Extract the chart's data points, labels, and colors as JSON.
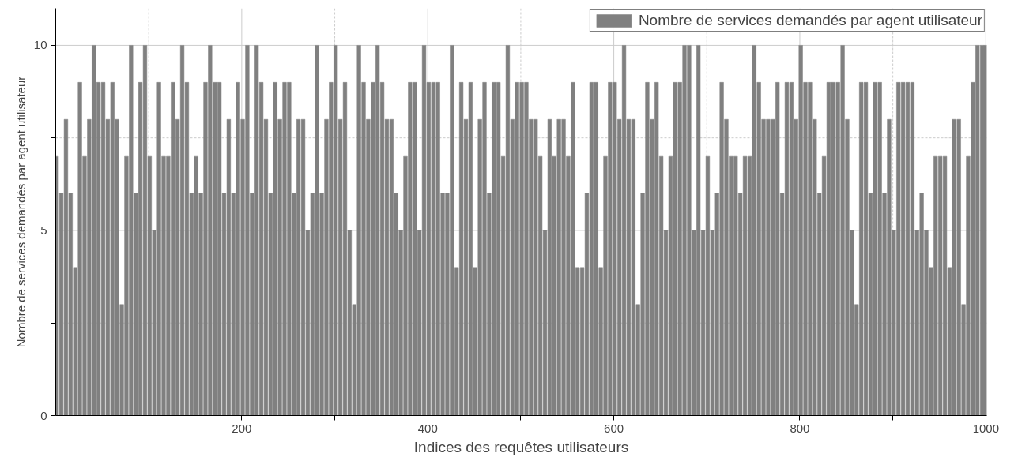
{
  "chart_data": {
    "type": "bar",
    "xlabel": "Indices des requêtes utilisateurs",
    "ylabel": "Nombre de services demandés par agent utilisateur",
    "x": [
      1,
      6,
      11,
      16,
      21,
      26,
      31,
      36,
      41,
      46,
      51,
      56,
      61,
      66,
      71,
      76,
      81,
      86,
      91,
      96,
      101,
      106,
      111,
      116,
      121,
      126,
      131,
      136,
      141,
      146,
      151,
      156,
      161,
      166,
      171,
      176,
      181,
      186,
      191,
      196,
      201,
      206,
      211,
      216,
      221,
      226,
      231,
      236,
      241,
      246,
      251,
      256,
      261,
      266,
      271,
      276,
      281,
      286,
      291,
      296,
      301,
      306,
      311,
      316,
      321,
      326,
      331,
      336,
      341,
      346,
      351,
      356,
      361,
      366,
      371,
      376,
      381,
      386,
      391,
      396,
      401,
      406,
      411,
      416,
      421,
      426,
      431,
      436,
      441,
      446,
      451,
      456,
      461,
      466,
      471,
      476,
      481,
      486,
      491,
      496,
      501,
      506,
      511,
      516,
      521,
      526,
      531,
      536,
      541,
      546,
      551,
      556,
      561,
      566,
      571,
      576,
      581,
      586,
      591,
      596,
      601,
      606,
      611,
      616,
      621,
      626,
      631,
      636,
      641,
      646,
      651,
      656,
      661,
      666,
      671,
      676,
      681,
      686,
      691,
      696,
      701,
      706,
      711,
      716,
      721,
      726,
      731,
      736,
      741,
      746,
      751,
      756,
      761,
      766,
      771,
      776,
      781,
      786,
      791,
      796,
      801,
      806,
      811,
      816,
      821,
      826,
      831,
      836,
      841,
      846,
      851,
      856,
      861,
      866,
      871,
      876,
      881,
      886,
      891,
      896,
      901,
      906,
      911,
      916,
      921,
      926,
      931,
      936,
      941,
      946,
      951,
      956,
      961,
      966,
      971,
      976,
      981,
      986,
      991,
      996,
      1000
    ],
    "series": [
      {
        "name": "Nombre de services demandés par agent utilisateur",
        "color": "#808080",
        "values": [
          7,
          6,
          8,
          6,
          4,
          9,
          7,
          8,
          10,
          9,
          9,
          8,
          9,
          8,
          3,
          7,
          10,
          6,
          9,
          10,
          7,
          5,
          9,
          7,
          7,
          9,
          8,
          10,
          9,
          6,
          7,
          6,
          9,
          10,
          9,
          9,
          6,
          8,
          6,
          9,
          8,
          10,
          6,
          10,
          9,
          8,
          6,
          9,
          8,
          9,
          9,
          6,
          8,
          8,
          5,
          6,
          10,
          6,
          8,
          9,
          10,
          8,
          9,
          5,
          3,
          10,
          9,
          8,
          9,
          10,
          9,
          8,
          8,
          6,
          5,
          7,
          9,
          9,
          5,
          10,
          9,
          9,
          9,
          6,
          6,
          10,
          4,
          9,
          8,
          9,
          4,
          8,
          9,
          6,
          9,
          9,
          7,
          10,
          8,
          9,
          9,
          9,
          8,
          8,
          7,
          5,
          8,
          7,
          8,
          8,
          7,
          9,
          4,
          4,
          6,
          9,
          9,
          4,
          7,
          9,
          9,
          8,
          10,
          8,
          8,
          3,
          6,
          9,
          8,
          9,
          7,
          5,
          7,
          9,
          9,
          10,
          10,
          5,
          10,
          5,
          7,
          5,
          6,
          9,
          8,
          7,
          7,
          6,
          7,
          7,
          10,
          9,
          8,
          8,
          8,
          9,
          6,
          9,
          9,
          8,
          10,
          9,
          9,
          8,
          6,
          7,
          9,
          9,
          9,
          10,
          8,
          5,
          3,
          9,
          9,
          6,
          9,
          9,
          6,
          8,
          5,
          9,
          9,
          9,
          9,
          5,
          6,
          5,
          4,
          7,
          7,
          7,
          4,
          8,
          8,
          3,
          7,
          9,
          10,
          10,
          10
        ]
      }
    ],
    "xlim": [
      0,
      1001
    ],
    "ylim": [
      0,
      11
    ],
    "xticks": [
      {
        "value": 100,
        "label": null
      },
      200,
      {
        "value": 300,
        "label": null
      },
      400,
      {
        "value": 500,
        "label": null
      },
      600,
      {
        "value": 700,
        "label": null
      },
      800,
      {
        "value": 900,
        "label": null
      },
      1000
    ],
    "yticks": [
      0,
      {
        "value": 2.5,
        "label": null
      },
      5,
      {
        "value": 7.5,
        "label": null
      },
      10
    ],
    "grid": true,
    "legend": "top right"
  }
}
